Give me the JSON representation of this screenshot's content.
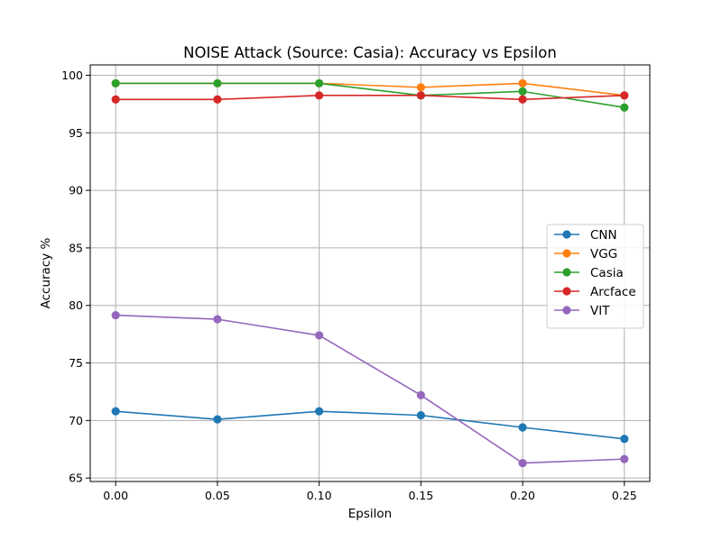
{
  "chart_data": {
    "type": "line",
    "title": "NOISE Attack (Source: Casia): Accuracy vs Epsilon",
    "xlabel": "Epsilon",
    "ylabel": "Accuracy %",
    "x": [
      0.0,
      0.05,
      0.1,
      0.15,
      0.2,
      0.25
    ],
    "x_tick_labels": [
      "0.00",
      "0.05",
      "0.10",
      "0.15",
      "0.20",
      "0.25"
    ],
    "y_ticks": [
      65,
      70,
      75,
      80,
      85,
      90,
      95,
      100
    ],
    "xlim": [
      -0.0125,
      0.2625
    ],
    "ylim": [
      64.7,
      100.9
    ],
    "grid": true,
    "legend_position": "center-right",
    "series": [
      {
        "name": "CNN",
        "color": "#1f77b4",
        "values": [
          70.8,
          70.1,
          70.8,
          70.45,
          69.4,
          68.4
        ]
      },
      {
        "name": "VGG",
        "color": "#ff7f0e",
        "values": [
          99.3,
          99.3,
          99.3,
          98.95,
          99.3,
          98.25
        ]
      },
      {
        "name": "Casia",
        "color": "#2ca02c",
        "values": [
          99.3,
          99.3,
          99.3,
          98.25,
          98.6,
          97.2
        ]
      },
      {
        "name": "Arcface",
        "color": "#d62728",
        "values": [
          97.9,
          97.9,
          98.25,
          98.25,
          97.9,
          98.25
        ]
      },
      {
        "name": "VIT",
        "color": "#9467bd",
        "values": [
          79.15,
          78.8,
          77.4,
          72.2,
          66.3,
          66.65
        ]
      }
    ]
  }
}
